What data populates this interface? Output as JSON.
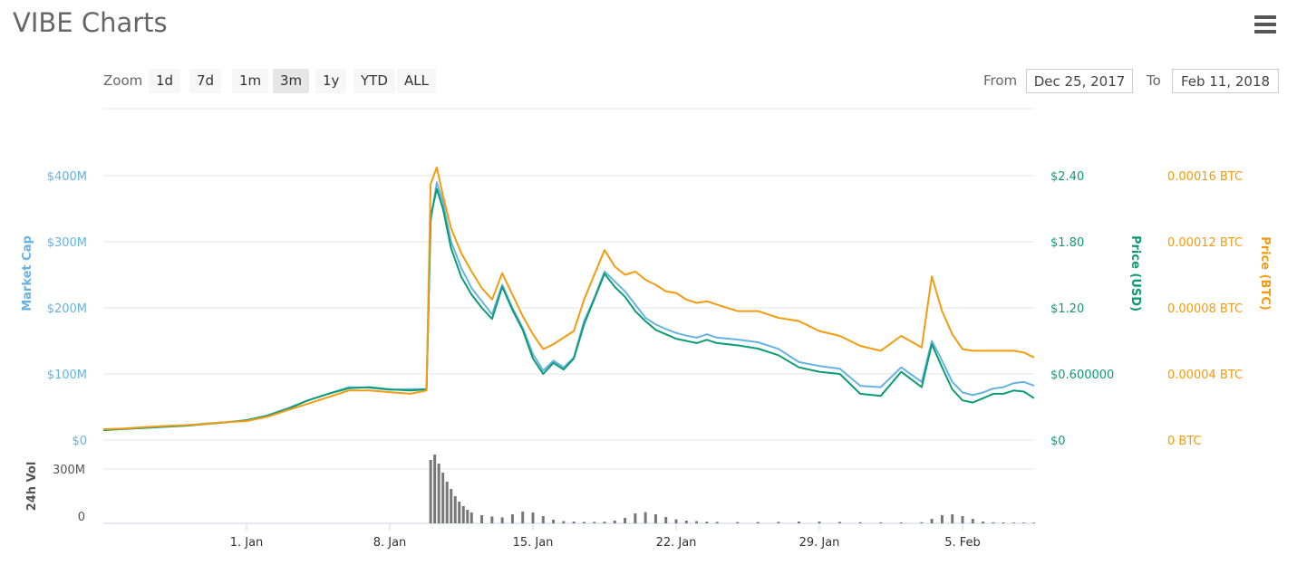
{
  "title": "VIBE Charts",
  "menu_icon": "hamburger-menu-icon",
  "zoom": {
    "label": "Zoom",
    "buttons": [
      "1d",
      "7d",
      "1m",
      "3m",
      "1y",
      "YTD",
      "ALL"
    ],
    "active": "3m"
  },
  "range": {
    "from_label": "From",
    "from_value": "Dec 25, 2017",
    "to_label": "To",
    "to_value": "Feb 11, 2018"
  },
  "colors": {
    "market_cap": "#65b2e3",
    "price_usd": "#0c9c74",
    "price_btc": "#f49b10",
    "volume": "#777777",
    "grid": "#e6e6e6"
  },
  "chart_data": [
    {
      "type": "line",
      "title": "",
      "axes": {
        "left": {
          "label": "Market Cap",
          "ticks": [
            "$0",
            "$100M",
            "$200M",
            "$300M",
            "$400M"
          ],
          "range": [
            0,
            400000000
          ]
        },
        "right_usd": {
          "label": "Price (USD)",
          "ticks": [
            "$0",
            "$0.600000",
            "$1.20",
            "$1.80",
            "$2.40"
          ],
          "range": [
            0,
            2.4
          ]
        },
        "right_btc": {
          "label": "Price (BTC)",
          "ticks": [
            "0 BTC",
            "0.00004 BTC",
            "0.00008 BTC",
            "0.00012 BTC",
            "0.00016 BTC"
          ],
          "range": [
            0,
            0.00016
          ]
        }
      },
      "x_ticks": [
        "1. Jan",
        "8. Jan",
        "15. Jan",
        "22. Jan",
        "29. Jan",
        "5. Feb"
      ],
      "x_range_days": [
        -7,
        38.5
      ],
      "x": [
        -7,
        -6,
        -5,
        -4,
        -3,
        -2,
        -1,
        0,
        1,
        2,
        3,
        4,
        5,
        6,
        7,
        8,
        8.8,
        9.0,
        9.3,
        9.6,
        10,
        10.5,
        11,
        11.5,
        12,
        12.5,
        13,
        13.5,
        14,
        14.5,
        15,
        15.5,
        16,
        16.5,
        17,
        17.5,
        18,
        18.5,
        19,
        19.5,
        20,
        20.5,
        21,
        21.5,
        22,
        22.5,
        23,
        24,
        25,
        26,
        27,
        28,
        29,
        30,
        31,
        32,
        33,
        33.5,
        34,
        34.5,
        35,
        35.5,
        36,
        36.5,
        37,
        37.5,
        38,
        38.5
      ],
      "series": [
        {
          "name": "Market Cap",
          "axis": "left",
          "values": [
            16,
            17,
            19,
            21,
            22,
            25,
            27,
            30,
            37,
            48,
            60,
            70,
            80,
            79,
            76,
            77,
            77,
            330,
            390,
            360,
            300,
            260,
            230,
            210,
            190,
            235,
            200,
            170,
            130,
            105,
            120,
            110,
            125,
            180,
            215,
            255,
            240,
            225,
            205,
            185,
            175,
            168,
            162,
            158,
            155,
            160,
            155,
            152,
            148,
            138,
            118,
            112,
            108,
            82,
            80,
            110,
            88,
            150,
            120,
            88,
            72,
            68,
            72,
            78,
            80,
            86,
            88,
            82
          ]
        },
        {
          "name": "Price (USD)",
          "axis": "right_usd",
          "values": [
            0.09,
            0.1,
            0.11,
            0.12,
            0.13,
            0.145,
            0.16,
            0.18,
            0.22,
            0.28,
            0.36,
            0.42,
            0.47,
            0.48,
            0.46,
            0.45,
            0.46,
            2.03,
            2.28,
            2.1,
            1.74,
            1.48,
            1.32,
            1.2,
            1.1,
            1.39,
            1.18,
            1.0,
            0.74,
            0.6,
            0.7,
            0.64,
            0.74,
            1.05,
            1.28,
            1.51,
            1.39,
            1.3,
            1.17,
            1.08,
            1.0,
            0.96,
            0.92,
            0.9,
            0.88,
            0.91,
            0.88,
            0.86,
            0.83,
            0.77,
            0.66,
            0.62,
            0.6,
            0.42,
            0.4,
            0.62,
            0.48,
            0.87,
            0.66,
            0.46,
            0.36,
            0.34,
            0.38,
            0.42,
            0.42,
            0.45,
            0.44,
            0.38
          ]
        },
        {
          "name": "Price (BTC)",
          "axis": "right_btc",
          "values": [
            6.5e-06,
            7e-06,
            7.8e-06,
            8.5e-06,
            9e-06,
            9.8e-06,
            1.08e-05,
            1.15e-05,
            1.4e-05,
            1.8e-05,
            2.2e-05,
            2.6e-05,
            3e-05,
            3e-05,
            2.9e-05,
            2.8e-05,
            3e-05,
            0.000155,
            0.000165,
            0.000148,
            0.000128,
            0.000113,
            0.000102,
            9.2e-05,
            8.5e-05,
            0.000101,
            8.8e-05,
            7.5e-05,
            6.4e-05,
            5.5e-05,
            5.8e-05,
            6.2e-05,
            6.6e-05,
            8.5e-05,
            0.0001,
            0.000115,
            0.000105,
            0.0001,
            0.000102,
            9.7e-05,
            9.4e-05,
            9e-05,
            8.9e-05,
            8.5e-05,
            8.3e-05,
            8.4e-05,
            8.2e-05,
            7.8e-05,
            7.8e-05,
            7.4e-05,
            7.2e-05,
            6.6e-05,
            6.3e-05,
            5.7e-05,
            5.4e-05,
            6.3e-05,
            5.6e-05,
            9.9e-05,
            7.8e-05,
            6.4e-05,
            5.5e-05,
            5.4e-05,
            5.4e-05,
            5.4e-05,
            5.4e-05,
            5.4e-05,
            5.3e-05,
            5e-05
          ]
        }
      ],
      "grid": true,
      "legend": "none"
    },
    {
      "type": "bar",
      "title": "",
      "ylabel": "24h Vol",
      "y_ticks": [
        "0",
        "300M"
      ],
      "ylim": [
        0,
        450000000
      ],
      "x": [
        9.0,
        9.2,
        9.4,
        9.6,
        9.8,
        10.0,
        10.2,
        10.4,
        10.6,
        10.8,
        11.0,
        11.5,
        12,
        12.5,
        13,
        13.5,
        14,
        14.5,
        15,
        15.5,
        16,
        16.5,
        17,
        17.5,
        18,
        18.5,
        19,
        19.5,
        20,
        20.5,
        21,
        21.5,
        22,
        22.5,
        23,
        24,
        25,
        26,
        27,
        28,
        29,
        30,
        31,
        32,
        33,
        33.5,
        34,
        34.5,
        35,
        35.5,
        36,
        36.5,
        37,
        37.5,
        38,
        38.5
      ],
      "values": [
        350,
        380,
        330,
        280,
        230,
        190,
        150,
        120,
        95,
        75,
        60,
        45,
        38,
        33,
        50,
        65,
        60,
        40,
        20,
        12,
        10,
        8,
        8,
        9,
        15,
        30,
        55,
        62,
        50,
        35,
        22,
        15,
        12,
        9,
        8,
        7,
        7,
        8,
        10,
        10,
        8,
        6,
        5,
        5,
        6,
        25,
        45,
        50,
        40,
        25,
        10,
        6,
        5,
        4,
        4,
        4
      ]
    }
  ]
}
